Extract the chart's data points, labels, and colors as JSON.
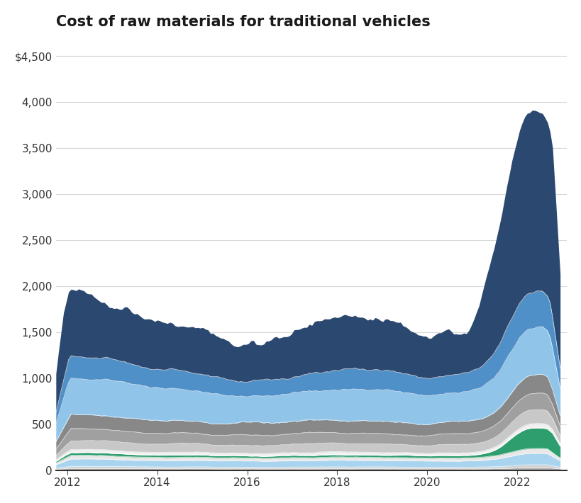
{
  "title": "Cost of raw materials for traditional vehicles",
  "title_fontsize": 15,
  "background_color": "#ffffff",
  "xlim": [
    2011.75,
    2023.1
  ],
  "ylim": [
    0,
    4700
  ],
  "yticks": [
    0,
    500,
    1000,
    1500,
    2000,
    2500,
    3000,
    3500,
    4000,
    4500
  ],
  "xticks": [
    2012,
    2014,
    2016,
    2018,
    2020,
    2022
  ],
  "colors": [
    "#d4d4d4",
    "#b8b8b8",
    "#c8e8f8",
    "#4ab8e8",
    "#f5f5f5",
    "#c0c0c0",
    "#989898",
    "#b8b8b8",
    "#c8dff0",
    "#6ab4e0",
    "#2e8b57",
    "#2b4870"
  ]
}
